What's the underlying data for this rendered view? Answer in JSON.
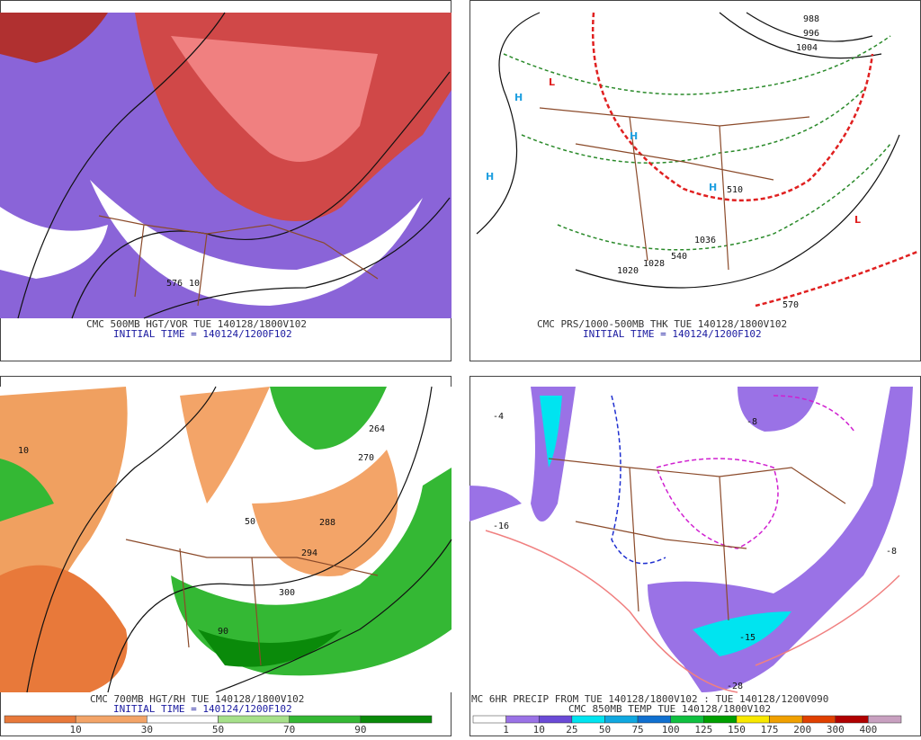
{
  "panels": [
    {
      "caption": "CMC 500MB HGT/VOR TUE 140128/1800V102",
      "initial": "INITIAL TIME = 140124/1200F102",
      "labels": [
        "576",
        "10"
      ]
    },
    {
      "caption": "CMC PRS/1000-500MB THK TUE 140128/1800V102",
      "initial": "INITIAL TIME = 140124/1200F102",
      "labels": [
        "H",
        "H",
        "H",
        "H",
        "L",
        "L",
        "988",
        "996",
        "1004",
        "1036",
        "1028",
        "1020",
        "540",
        "510",
        "570"
      ]
    },
    {
      "caption": "CMC 700MB HGT/RH TUE 140128/1800V102",
      "initial": "INITIAL TIME = 140124/1200F102",
      "labels": [
        "288",
        "294",
        "300",
        "270",
        "264",
        "10",
        "50",
        "90"
      ]
    },
    {
      "caption": "MC 6HR PRECIP FROM TUE 140128/1800V102 : TUE 140128/1200V090",
      "initial": "CMC 850MB TEMP TUE 140128/1800V102",
      "labels": [
        "-16",
        "-8",
        "-4",
        "-15",
        "-28",
        "-8"
      ]
    }
  ],
  "colorbars": [
    {
      "labels": [
        10,
        30,
        50,
        70,
        90
      ],
      "colors": [
        "#e8793a",
        "#f3a468",
        "#ffffff",
        "#a6e08a",
        "#34b834",
        "#0a8a0a"
      ]
    },
    {
      "labels": [
        1,
        10,
        25,
        50,
        75,
        100,
        125,
        150,
        175,
        200,
        300,
        400
      ],
      "colors": [
        "#ffffff",
        "#9a72e6",
        "#6a4ad6",
        "#00e4f0",
        "#10a8e0",
        "#1070d0",
        "#10c040",
        "#00a000",
        "#f8e800",
        "#f0a000",
        "#e04000",
        "#b00000",
        "#c8a0c0"
      ]
    }
  ]
}
